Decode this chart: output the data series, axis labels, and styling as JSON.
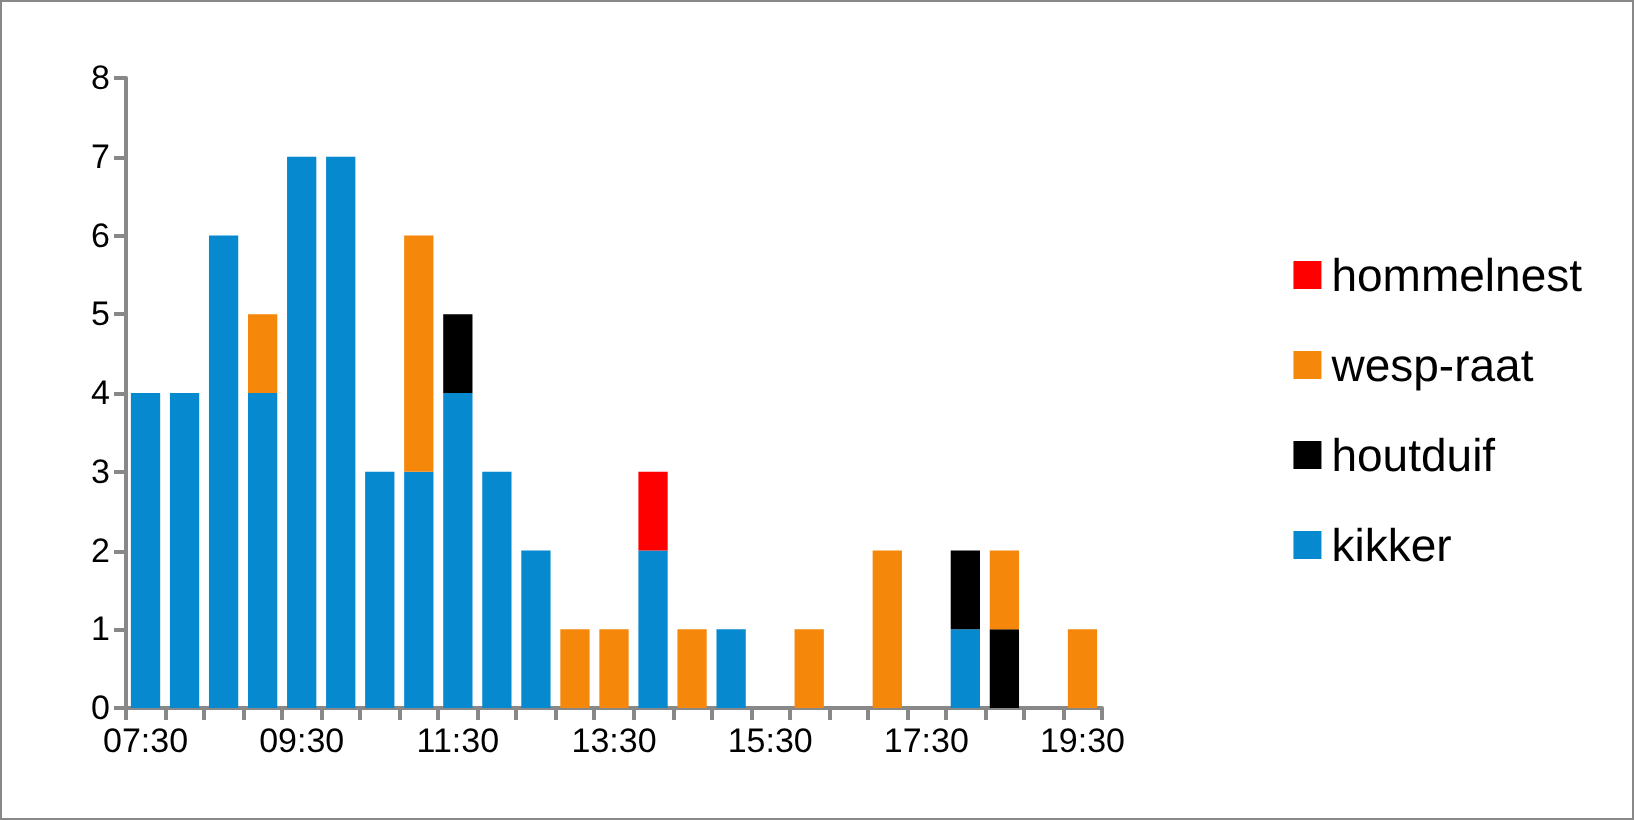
{
  "chart_data": {
    "type": "bar",
    "stacked": true,
    "categories": [
      "07:30",
      null,
      null,
      null,
      "09:30",
      null,
      null,
      null,
      "11:30",
      null,
      null,
      null,
      "13:30",
      null,
      null,
      null,
      "15:30",
      null,
      null,
      null,
      "17:30",
      null,
      null,
      null,
      "19:30"
    ],
    "series": [
      {
        "name": "kikker",
        "color": "#0789cf",
        "values": [
          4,
          4,
          6,
          4,
          7,
          7,
          3,
          3,
          4,
          3,
          2,
          0,
          0,
          2,
          0,
          1,
          0,
          0,
          0,
          0,
          0,
          1,
          0,
          0,
          0
        ]
      },
      {
        "name": "houtduif",
        "color": "#000000",
        "values": [
          0,
          0,
          0,
          0,
          0,
          0,
          0,
          0,
          1,
          0,
          0,
          0,
          0,
          0,
          0,
          0,
          0,
          0,
          0,
          0,
          0,
          1,
          1,
          0,
          0
        ]
      },
      {
        "name": "wesp-raat",
        "color": "#f5870a",
        "values": [
          0,
          0,
          0,
          1,
          0,
          0,
          0,
          3,
          0,
          0,
          0,
          1,
          1,
          0,
          1,
          0,
          0,
          1,
          0,
          2,
          0,
          0,
          1,
          0,
          1
        ]
      },
      {
        "name": "hommelnest",
        "color": "#ff0000",
        "values": [
          0,
          0,
          0,
          0,
          0,
          0,
          0,
          0,
          0,
          0,
          0,
          0,
          0,
          1,
          0,
          0,
          0,
          0,
          0,
          0,
          0,
          0,
          0,
          0,
          0
        ]
      }
    ],
    "ylim": [
      0,
      8
    ],
    "yticks": [
      0,
      1,
      2,
      3,
      4,
      5,
      6,
      7,
      8
    ],
    "grid": false,
    "legend": "right"
  }
}
